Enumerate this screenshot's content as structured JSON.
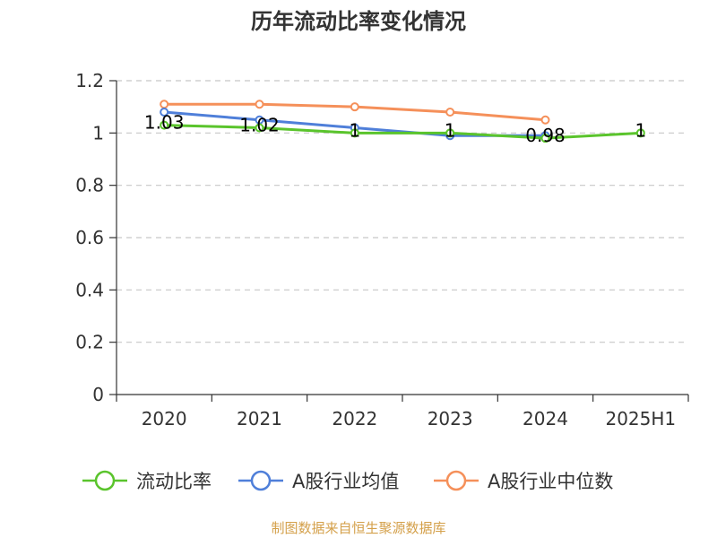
{
  "chart_data": {
    "type": "line",
    "title": "历年流动比率变化情况",
    "categories": [
      "2020",
      "2021",
      "2022",
      "2023",
      "2024",
      "2025H1"
    ],
    "ylim": [
      0,
      1.2
    ],
    "yticks": [
      "0",
      "0.2",
      "0.4",
      "0.6",
      "0.8",
      "1",
      "1.2"
    ],
    "grid": true,
    "legend_position": "bottom",
    "series": [
      {
        "name": "流动比率",
        "color": "#5ac42c",
        "values": [
          1.03,
          1.02,
          1,
          1,
          0.98,
          1
        ],
        "labels": [
          "1.03",
          "1.02",
          "1",
          "1",
          "0.98",
          "1"
        ]
      },
      {
        "name": "A股行业均值",
        "color": "#4f7fd9",
        "values": [
          1.08,
          1.05,
          1.02,
          0.99,
          0.99,
          null
        ]
      },
      {
        "name": "A股行业中位数",
        "color": "#f5905a",
        "values": [
          1.11,
          1.11,
          1.1,
          1.08,
          1.05,
          null
        ]
      }
    ]
  },
  "footer": {
    "source": "制图数据来自恒生聚源数据库"
  }
}
